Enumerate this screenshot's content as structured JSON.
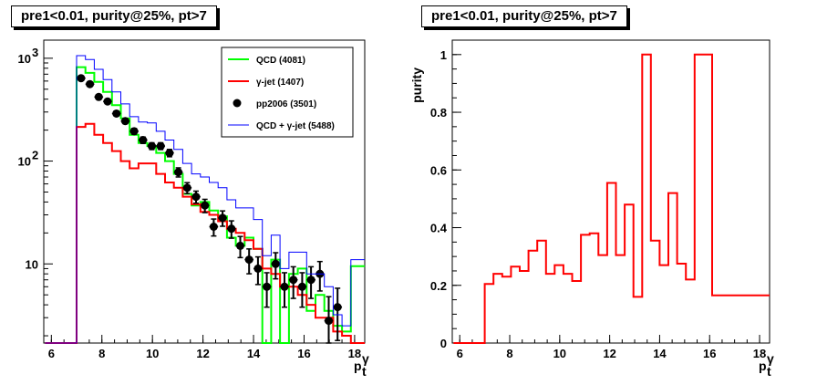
{
  "chart_data": [
    {
      "type": "histogram",
      "title": "pre1<0.01, purity@25%, pt>7",
      "xlabel": "p",
      "xlabel_sub": "t",
      "xlabel_sup": "γ",
      "ylabel": "",
      "xlim": [
        5.7,
        18.4
      ],
      "ylim": [
        1.7,
        1500
      ],
      "yscale": "log",
      "xticks": [
        6,
        8,
        10,
        12,
        14,
        16,
        18
      ],
      "xtick_labels": [
        "6",
        "8",
        "10",
        "12",
        "14",
        "16",
        "18"
      ],
      "yticks": [
        10,
        100,
        1000
      ],
      "ytick_labels": [
        "10",
        "10",
        "10"
      ],
      "ytick_exponents": [
        "",
        "2",
        "3"
      ],
      "bin_edges": [
        5.75,
        7.0,
        7.35,
        7.7,
        8.05,
        8.4,
        8.75,
        9.1,
        9.45,
        9.8,
        10.15,
        10.5,
        10.85,
        11.2,
        11.55,
        11.9,
        12.25,
        12.6,
        12.95,
        13.3,
        13.65,
        14.0,
        14.35,
        14.7,
        15.05,
        15.4,
        15.75,
        16.1,
        16.45,
        16.8,
        17.15,
        17.5,
        17.85,
        18.2,
        18.4
      ],
      "series": [
        {
          "name": "QCD (4081)",
          "color": "#00ff00",
          "style": "step",
          "values": [
            1.7,
            820,
            720,
            590,
            470,
            350,
            260,
            180,
            150,
            140,
            120,
            100,
            75,
            48,
            37,
            40,
            33,
            29,
            18,
            15,
            18,
            14,
            1.7,
            11,
            1.7,
            8,
            9,
            3.5,
            5,
            3.5,
            2.5,
            2.2,
            9.5,
            9.5
          ]
        },
        {
          "name": "γ-jet (1407)",
          "color": "#ff0000",
          "style": "step",
          "values": [
            1.7,
            215,
            230,
            180,
            150,
            125,
            100,
            85,
            95,
            95,
            75,
            62,
            55,
            45,
            38,
            32,
            30,
            26,
            22,
            20,
            17,
            14,
            9,
            8,
            6,
            6,
            5,
            4,
            3,
            3,
            2.2,
            2,
            1.7,
            1.7
          ]
        },
        {
          "name": "pp2006 (3501)",
          "color": "#000000",
          "style": "points",
          "values": [
            null,
            640,
            560,
            420,
            380,
            290,
            245,
            195,
            160,
            140,
            140,
            120,
            78,
            55,
            45,
            37,
            23,
            28,
            22,
            15,
            11,
            9,
            6,
            10,
            6,
            7,
            6,
            7,
            8,
            2.8,
            3.8,
            0,
            0,
            0
          ]
        },
        {
          "name": "QCD + γ-jet (5488)",
          "color": "#0000ff",
          "style": "step",
          "values": [
            1.7,
            1060,
            970,
            780,
            620,
            470,
            360,
            270,
            240,
            235,
            195,
            160,
            130,
            95,
            75,
            70,
            62,
            55,
            42,
            35,
            35,
            27,
            12,
            19,
            9,
            13,
            13,
            8,
            8,
            6,
            3.2,
            2.5,
            11,
            11
          ]
        }
      ],
      "legend_position": "top-right"
    },
    {
      "type": "histogram",
      "title": "pre1<0.01, purity@25%, pt>7",
      "xlabel": "p",
      "xlabel_sub": "t",
      "xlabel_sup": "γ",
      "ylabel": "purity",
      "xlim": [
        5.7,
        18.4
      ],
      "ylim": [
        0,
        1.05
      ],
      "xticks": [
        6,
        8,
        10,
        12,
        14,
        16,
        18
      ],
      "xtick_labels": [
        "6",
        "8",
        "10",
        "12",
        "14",
        "16",
        "18"
      ],
      "yticks": [
        0,
        0.2,
        0.4,
        0.6,
        0.8,
        1
      ],
      "ytick_labels": [
        "0",
        "0.2",
        "0.4",
        "0.6",
        "0.8",
        "1"
      ],
      "bin_edges": [
        5.75,
        7.0,
        7.35,
        7.7,
        8.05,
        8.4,
        8.75,
        9.1,
        9.45,
        9.8,
        10.15,
        10.5,
        10.85,
        11.2,
        11.55,
        11.9,
        12.25,
        12.6,
        12.95,
        13.3,
        13.65,
        14.0,
        14.35,
        14.7,
        15.05,
        15.4,
        15.75,
        16.1,
        16.45,
        16.8,
        17.15,
        17.5,
        17.85,
        18.2,
        18.4
      ],
      "series": [
        {
          "name": "purity",
          "color": "#ff0000",
          "style": "step",
          "values": [
            0.0,
            0.205,
            0.24,
            0.23,
            0.265,
            0.25,
            0.32,
            0.355,
            0.24,
            0.27,
            0.24,
            0.215,
            0.375,
            0.38,
            0.305,
            0.555,
            0.305,
            0.48,
            0.16,
            1.0,
            0.355,
            0.27,
            0.52,
            0.275,
            0.22,
            1.0,
            1.0,
            0.165,
            0.165,
            0.165,
            0.165,
            0.165,
            0.165,
            0.165
          ]
        }
      ]
    }
  ]
}
